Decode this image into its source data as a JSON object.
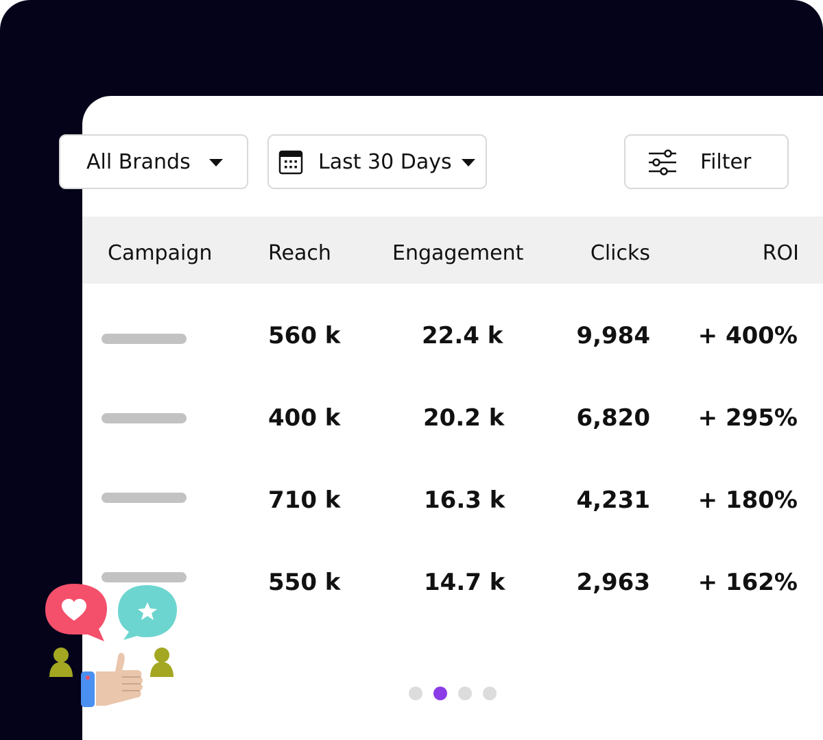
{
  "toolbar": {
    "brand_select": {
      "value": "All Brands",
      "icon": "caret-down-icon"
    },
    "date_select": {
      "value": "Last 30 Days",
      "icon": "calendar-icon"
    },
    "filter_button": {
      "label": "Filter",
      "icon": "sliders-icon"
    }
  },
  "table": {
    "columns": [
      "Campaign",
      "Reach",
      "Engagement",
      "Clicks",
      "ROI"
    ],
    "rows": [
      {
        "reach": "560 k",
        "engagement": "22.4 k",
        "clicks": "9,984",
        "roi": "+ 400%"
      },
      {
        "reach": "400 k",
        "engagement": "20.2 k",
        "clicks": "6,820",
        "roi": "+ 295%"
      },
      {
        "reach": "710 k",
        "engagement": "16.3 k",
        "clicks": "4,231",
        "roi": "+ 180%"
      },
      {
        "reach": "550 k",
        "engagement": "14.7 k",
        "clicks": "2,963",
        "roi": "+ 162%"
      }
    ]
  },
  "pagination": {
    "total": 4,
    "active_index": 1
  },
  "colors": {
    "background_dark": "#04031a",
    "accent": "#8a3ce6",
    "heart_bubble": "#f4506b",
    "star_bubble": "#6dd5cf",
    "person": "#a3a722"
  }
}
